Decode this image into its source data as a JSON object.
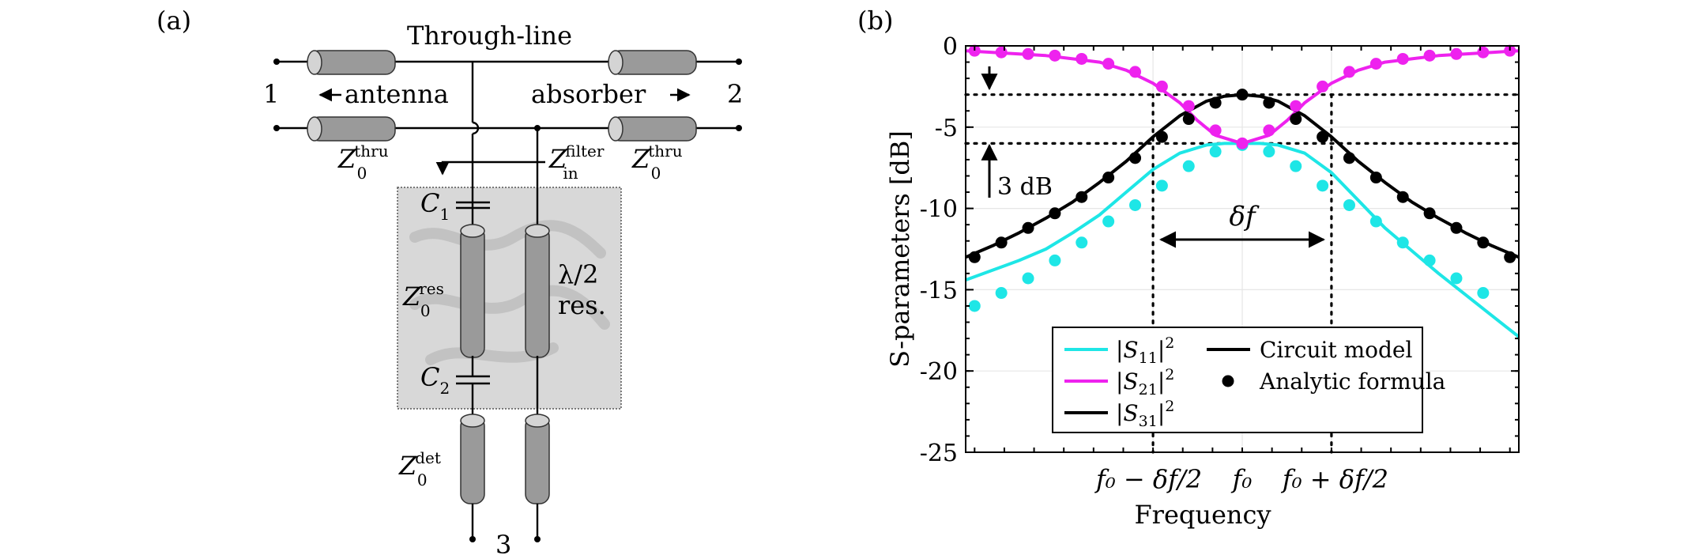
{
  "panel_a": {
    "label": "(a)",
    "through_line": "Through-line",
    "port1": "1",
    "port2": "2",
    "port3": "3",
    "antenna": "antenna",
    "absorber": "absorber",
    "z0_thru_left": {
      "base": "Z",
      "sub": "0",
      "sup": "thru"
    },
    "z0_thru_right": {
      "base": "Z",
      "sub": "0",
      "sup": "thru"
    },
    "zin_filter": {
      "base": "Z",
      "sub": "in",
      "sup": "filter"
    },
    "c1": {
      "base": "C",
      "sub": "1"
    },
    "c2": {
      "base": "C",
      "sub": "2"
    },
    "z0_res": {
      "base": "Z",
      "sub": "0",
      "sup": "res"
    },
    "resonator_line1": "λ/2",
    "resonator_line2": "res.",
    "z0_det": {
      "base": "Z",
      "sub": "0",
      "sup": "det"
    }
  },
  "panel_b": {
    "label": "(b)",
    "annotation_3db": "3 dB",
    "annotation_df": "δf"
  },
  "chart_data": {
    "type": "line",
    "xlabel": "Frequency",
    "ylabel": "S-parameters [dB]",
    "ylim": [
      -25,
      0
    ],
    "yticks": [
      "0",
      "-5",
      "-10",
      "-15",
      "-20",
      "-25"
    ],
    "xticks": [
      "f₀ − δf/2",
      "f₀",
      "f₀ + δf/2"
    ],
    "xrange": [
      -3.1,
      3.1
    ],
    "x_positions": {
      "f0_minus": -1.0,
      "f0": 0.0,
      "f0_plus": 1.0
    },
    "grid": true,
    "legend_position": "bottom-center",
    "reference_lines_db": [
      -3,
      -6
    ],
    "series": [
      {
        "name": "|S11|²",
        "color": "#1ee6e6",
        "kind": "curve",
        "x": [
          -3.1,
          -2.8,
          -2.5,
          -2.2,
          -1.9,
          -1.6,
          -1.3,
          -1.0,
          -0.7,
          -0.4,
          -0.2,
          0.0,
          0.2,
          0.4,
          0.7,
          1.0,
          1.3,
          1.6,
          1.9,
          2.2,
          2.5,
          2.8,
          3.1
        ],
        "y": [
          -14.4,
          -13.8,
          -13.2,
          -12.5,
          -11.5,
          -10.4,
          -9.0,
          -7.6,
          -6.6,
          -6.1,
          -6.0,
          -6.0,
          -6.0,
          -6.1,
          -6.6,
          -7.8,
          -9.5,
          -11.2,
          -12.6,
          -14.0,
          -15.3,
          -16.6,
          -17.9
        ]
      },
      {
        "name": "|S21|²",
        "color": "#ee22ee",
        "kind": "curve",
        "x": [
          -3.1,
          -2.8,
          -2.5,
          -2.2,
          -1.9,
          -1.6,
          -1.3,
          -1.0,
          -0.7,
          -0.5,
          -0.3,
          0.0,
          0.3,
          0.5,
          0.7,
          1.0,
          1.3,
          1.6,
          1.9,
          2.2,
          2.5,
          2.8,
          3.1
        ],
        "y": [
          -0.3,
          -0.4,
          -0.5,
          -0.6,
          -0.8,
          -1.0,
          -1.5,
          -2.3,
          -3.5,
          -4.6,
          -5.5,
          -6.0,
          -5.5,
          -4.6,
          -3.5,
          -2.3,
          -1.5,
          -1.0,
          -0.8,
          -0.6,
          -0.5,
          -0.4,
          -0.3
        ]
      },
      {
        "name": "|S31|²",
        "color": "#000000",
        "kind": "curve",
        "x": [
          -3.1,
          -2.8,
          -2.5,
          -2.2,
          -1.9,
          -1.6,
          -1.3,
          -1.0,
          -0.7,
          -0.4,
          -0.2,
          0.0,
          0.2,
          0.4,
          0.7,
          1.0,
          1.3,
          1.6,
          1.9,
          2.2,
          2.5,
          2.8,
          3.1
        ],
        "y": [
          -13.0,
          -12.3,
          -11.5,
          -10.6,
          -9.6,
          -8.4,
          -7.1,
          -5.6,
          -4.3,
          -3.4,
          -3.1,
          -3.0,
          -3.1,
          -3.4,
          -4.3,
          -5.6,
          -7.1,
          -8.4,
          -9.6,
          -10.6,
          -11.5,
          -12.3,
          -13.0
        ]
      }
    ],
    "markers": [
      {
        "series": "|S11|²",
        "color": "#1ee6e6",
        "x": [
          -3.0,
          -2.7,
          -2.4,
          -2.1,
          -1.8,
          -1.5,
          -1.2,
          -0.9,
          -0.6,
          -0.3,
          0.0,
          0.3,
          0.6,
          0.9,
          1.2,
          1.5,
          1.8,
          2.1,
          2.4,
          2.7
        ],
        "y": [
          -16.0,
          -15.2,
          -14.3,
          -13.2,
          -12.1,
          -10.8,
          -9.8,
          -8.6,
          -7.4,
          -6.5,
          -6.1,
          -6.5,
          -7.4,
          -8.6,
          -9.8,
          -10.8,
          -12.1,
          -13.2,
          -14.3,
          -15.2
        ]
      },
      {
        "series": "|S21|²",
        "color": "#ee22ee",
        "x": [
          -3.0,
          -2.7,
          -2.4,
          -2.1,
          -1.8,
          -1.5,
          -1.2,
          -0.9,
          -0.6,
          -0.3,
          0.0,
          0.3,
          0.6,
          0.9,
          1.2,
          1.5,
          1.8,
          2.1,
          2.4,
          2.7,
          3.0
        ],
        "y": [
          -0.3,
          -0.4,
          -0.5,
          -0.6,
          -0.8,
          -1.1,
          -1.6,
          -2.5,
          -3.7,
          -5.2,
          -6.0,
          -5.2,
          -3.7,
          -2.5,
          -1.6,
          -1.1,
          -0.8,
          -0.6,
          -0.5,
          -0.4,
          -0.3
        ]
      },
      {
        "series": "|S31|²",
        "color": "#000000",
        "x": [
          -3.0,
          -2.7,
          -2.4,
          -2.1,
          -1.8,
          -1.5,
          -1.2,
          -0.9,
          -0.6,
          -0.3,
          0.0,
          0.3,
          0.6,
          0.9,
          1.2,
          1.5,
          1.8,
          2.1,
          2.4,
          2.7,
          3.0
        ],
        "y": [
          -13.0,
          -12.1,
          -11.2,
          -10.3,
          -9.3,
          -8.1,
          -6.9,
          -5.6,
          -4.5,
          -3.5,
          -3.0,
          -3.5,
          -4.5,
          -5.6,
          -6.9,
          -8.1,
          -9.3,
          -10.3,
          -11.2,
          -12.1,
          -13.0
        ]
      }
    ],
    "legend": {
      "entries": [
        {
          "label": "|S11|²",
          "base": "|S",
          "sub": "11",
          "tail": "|",
          "sup": "2",
          "color": "#1ee6e6"
        },
        {
          "label": "|S21|²",
          "base": "|S",
          "sub": "21",
          "tail": "|",
          "sup": "2",
          "color": "#ee22ee"
        },
        {
          "label": "|S31|²",
          "base": "|S",
          "sub": "31",
          "tail": "|",
          "sup": "2",
          "color": "#000000"
        }
      ],
      "style_entries": [
        "Circuit model",
        "Analytic formula"
      ]
    }
  }
}
